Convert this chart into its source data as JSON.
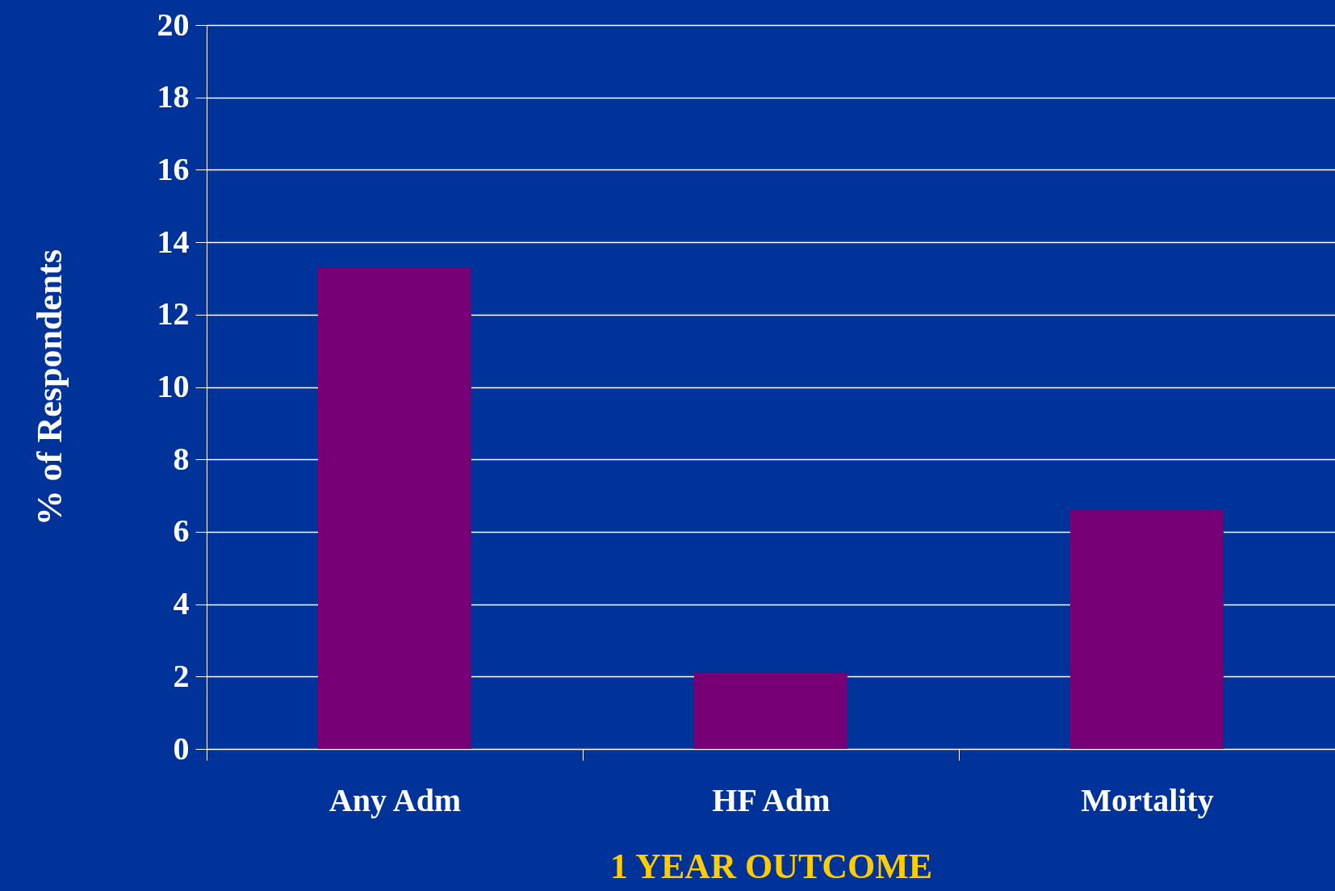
{
  "chart_data": {
    "type": "bar",
    "xlabel": "1 YEAR OUTCOME",
    "ylabel": "% of  Respondents",
    "categories": [
      "Any Adm",
      "HF Adm",
      "Mortality"
    ],
    "values": [
      13.3,
      2.1,
      6.6
    ],
    "color": "#770077",
    "ylim": [
      0,
      20
    ],
    "yticks": [
      0,
      2,
      4,
      6,
      8,
      10,
      12,
      14,
      16,
      18,
      20
    ],
    "grid": "y"
  }
}
